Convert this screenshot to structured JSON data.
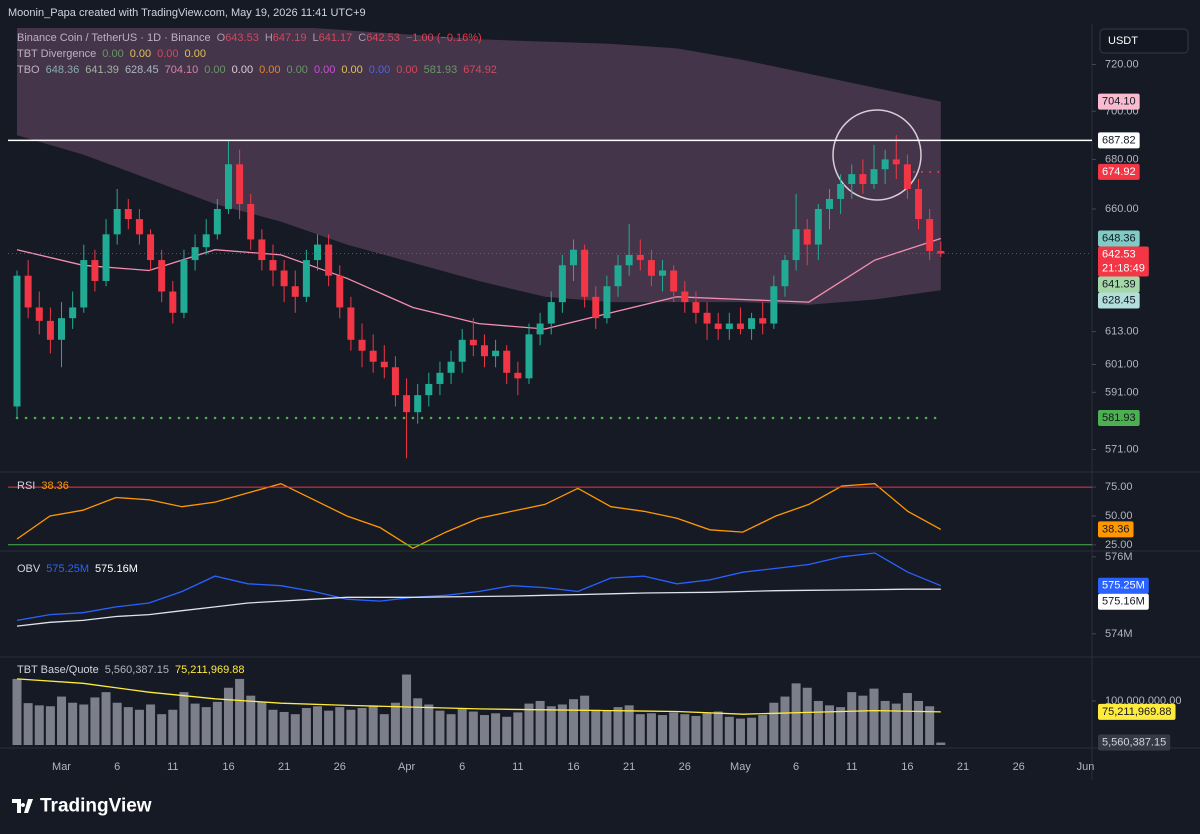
{
  "header": "Moonin_Papa created with TradingView.com, May 19, 2026 11:41 UTC+9",
  "footer_logo": "TradingView",
  "currency": "USDT",
  "legend": {
    "symbol": "Binance Coin / TetherUS · 1D · Binance",
    "value_color": "#f23645",
    "ohlc": [
      {
        "prefix": "O",
        "value": "643.53"
      },
      {
        "prefix": "H",
        "value": "647.19"
      },
      {
        "prefix": "L",
        "value": "641.17"
      },
      {
        "prefix": "C",
        "value": "642.53"
      }
    ],
    "change": "−1.00 (−0.16%)",
    "indicators": [
      {
        "name": "TBT Divergence",
        "values": [
          {
            "text": "0.00",
            "color": "#4caf50"
          },
          {
            "text": "0.00",
            "color": "#ffeb3b"
          },
          {
            "text": "0.00",
            "color": "#f23645"
          },
          {
            "text": "0.00",
            "color": "#ffeb3b"
          }
        ]
      },
      {
        "name": "TBO",
        "values": [
          {
            "text": "648.36",
            "color": "#80cbc4"
          },
          {
            "text": "641.39",
            "color": "#a5d6a7"
          },
          {
            "text": "628.45",
            "color": "#b2dfdb"
          },
          {
            "text": "704.10",
            "color": "#f48fb1"
          },
          {
            "text": "0.00",
            "color": "#4caf50"
          },
          {
            "text": "0.00",
            "color": "#ffffff"
          },
          {
            "text": "0.00",
            "color": "#ff9800"
          },
          {
            "text": "0.00",
            "color": "#4caf50"
          },
          {
            "text": "0.00",
            "color": "#e040fb"
          },
          {
            "text": "0.00",
            "color": "#ffeb3b"
          },
          {
            "text": "0.00",
            "color": "#2962ff"
          },
          {
            "text": "0.00",
            "color": "#f23645"
          },
          {
            "text": "581.93",
            "color": "#4caf50"
          },
          {
            "text": "674.92",
            "color": "#f23645"
          }
        ]
      }
    ]
  },
  "time_axis": {
    "labels": [
      "Mar",
      "6",
      "11",
      "16",
      "21",
      "26",
      "Apr",
      "6",
      "11",
      "16",
      "21",
      "26",
      "May",
      "6",
      "11",
      "16",
      "21",
      "26",
      "Jun"
    ]
  },
  "chart_data": [
    {
      "type": "candlestick",
      "log": true,
      "ylim": [
        564,
        736
      ],
      "up_color": "#22ab94",
      "down_color": "#f23645",
      "yticks": [
        {
          "value": 720,
          "label": "720.00"
        },
        {
          "value": 700,
          "label": "700.00"
        },
        {
          "value": 680,
          "label": "680.00"
        },
        {
          "value": 660,
          "label": "660.00"
        },
        {
          "value": 613,
          "label": "613.00"
        },
        {
          "value": 601,
          "label": "601.00"
        },
        {
          "value": 591,
          "label": "591.00"
        },
        {
          "value": 571,
          "label": "571.00"
        }
      ],
      "open": [
        586,
        634,
        622,
        617,
        610,
        618,
        622,
        640,
        632,
        650,
        660,
        656,
        650,
        640,
        628,
        620,
        640,
        645,
        650,
        660,
        678,
        662,
        648,
        640,
        636,
        630,
        626,
        640,
        646,
        634,
        622,
        610,
        606,
        602,
        600,
        590,
        584,
        590,
        594,
        598,
        602,
        610,
        608,
        604,
        606,
        598,
        596,
        612,
        616,
        624,
        638,
        644,
        626,
        618,
        630,
        638,
        642,
        640,
        634,
        636,
        628,
        624,
        620,
        616,
        614,
        616,
        614,
        618,
        616,
        630,
        640,
        652,
        646,
        660,
        664,
        670,
        674,
        670,
        676,
        680,
        678,
        668,
        656,
        643.53
      ],
      "high": [
        636,
        640,
        628,
        622,
        624,
        628,
        646,
        644,
        656,
        668,
        664,
        660,
        652,
        644,
        632,
        644,
        650,
        656,
        664,
        688,
        684,
        666,
        652,
        646,
        640,
        636,
        644,
        650,
        650,
        638,
        626,
        616,
        612,
        608,
        604,
        596,
        594,
        598,
        602,
        606,
        614,
        618,
        612,
        610,
        608,
        602,
        616,
        620,
        628,
        642,
        648,
        646,
        630,
        634,
        642,
        654,
        648,
        644,
        640,
        638,
        632,
        628,
        624,
        620,
        620,
        622,
        620,
        624,
        634,
        642,
        666,
        656,
        662,
        668,
        674,
        678,
        680,
        686,
        684,
        690,
        682,
        672,
        660,
        647.19
      ],
      "low": [
        582,
        618,
        612,
        605,
        600,
        614,
        620,
        628,
        630,
        646,
        652,
        646,
        636,
        624,
        616,
        618,
        636,
        642,
        648,
        658,
        656,
        644,
        636,
        630,
        624,
        620,
        624,
        636,
        630,
        618,
        606,
        600,
        598,
        596,
        586,
        568,
        580,
        586,
        590,
        594,
        598,
        604,
        600,
        600,
        594,
        590,
        594,
        608,
        612,
        620,
        632,
        622,
        614,
        616,
        626,
        634,
        636,
        630,
        628,
        624,
        620,
        616,
        610,
        610,
        610,
        612,
        610,
        612,
        614,
        626,
        636,
        638,
        640,
        652,
        658,
        664,
        666,
        668,
        670,
        672,
        664,
        652,
        640,
        641.17
      ],
      "close": [
        634,
        622,
        617,
        610,
        618,
        622,
        640,
        632,
        650,
        660,
        656,
        650,
        640,
        628,
        620,
        640,
        645,
        650,
        660,
        678,
        662,
        648,
        640,
        636,
        630,
        626,
        640,
        646,
        634,
        622,
        610,
        606,
        602,
        600,
        590,
        584,
        590,
        594,
        598,
        602,
        610,
        608,
        604,
        606,
        598,
        596,
        612,
        616,
        624,
        638,
        644,
        626,
        618,
        630,
        638,
        642,
        640,
        634,
        636,
        628,
        624,
        620,
        616,
        614,
        616,
        614,
        618,
        616,
        630,
        640,
        652,
        646,
        660,
        664,
        670,
        674,
        670,
        676,
        680,
        678,
        668,
        656,
        643.53,
        642.53
      ],
      "cloud": {
        "color": "#9c6b8f",
        "upper": [
          760,
          752,
          745,
          740,
          737,
          735,
          733,
          731,
          730,
          729,
          727,
          722,
          716,
          710,
          704.1
        ],
        "lower": [
          690,
          682,
          672,
          662,
          655,
          646,
          639,
          632,
          626,
          624,
          624,
          624,
          623,
          625,
          628.45
        ]
      },
      "lines": [
        {
          "color": "#f48fb1",
          "values": [
            644,
            638,
            636,
            644,
            642,
            633,
            622,
            616,
            614,
            620,
            626,
            625,
            624,
            640,
            648.36
          ]
        }
      ],
      "axis_labels": [
        {
          "value": 704.1,
          "label": "704.10",
          "color": "#f8bbd0",
          "text_color": "#131722"
        },
        {
          "value": 687.82,
          "label": "687.82",
          "color": "#ffffff",
          "text_color": "#131722",
          "line": "solid"
        },
        {
          "value": 674.92,
          "label": "674.92",
          "color": "#f23645",
          "text_color": "#ffffff",
          "line": "dotted-short"
        },
        {
          "value": 648.36,
          "label": "648.36",
          "color": "#80cbc4",
          "text_color": "#131722"
        },
        {
          "value": 642.53,
          "label": "642.53",
          "sublabel": "21:18:49",
          "color": "#f23645",
          "text_color": "#ffffff",
          "line": "price"
        },
        {
          "value": 641.39,
          "label": "641.39",
          "color": "#a5d6a7",
          "text_color": "#131722"
        },
        {
          "value": 628.45,
          "label": "628.45",
          "color": "#b2dfdb",
          "text_color": "#131722"
        },
        {
          "value": 581.93,
          "label": "581.93",
          "color": "#4caf50",
          "text_color": "#131722",
          "line": "dotted"
        }
      ]
    },
    {
      "type": "line",
      "name": "RSI",
      "ylim": [
        20.5,
        85.5
      ],
      "legend_values": [
        {
          "text": "38.36",
          "color": "#ff9800"
        }
      ],
      "yticks": [
        {
          "value": 75,
          "label": "75.00",
          "line": "#f23645"
        },
        {
          "value": 50,
          "label": "50.00"
        },
        {
          "value": 25,
          "label": "25.00",
          "line": "#4caf50"
        }
      ],
      "series": [
        {
          "color": "#ff9800",
          "values": [
            30,
            50,
            55,
            66,
            64,
            58,
            62,
            70,
            78,
            64,
            50,
            40,
            22,
            36,
            48,
            54,
            60,
            74,
            58,
            54,
            48,
            38,
            36,
            50,
            60,
            76,
            78,
            54,
            38.36
          ]
        }
      ],
      "axis_labels": [
        {
          "value": 38.36,
          "label": "38.36",
          "color": "#ff9800",
          "text_color": "#131722"
        }
      ]
    },
    {
      "type": "line",
      "name": "OBV",
      "ylim": [
        573450000,
        576100000
      ],
      "legend_values": [
        {
          "text": "575.25M",
          "color": "#2962ff"
        },
        {
          "text": "575.16M",
          "color": "#ffffff"
        }
      ],
      "yticks": [
        {
          "value": 576000000,
          "label": "576M"
        },
        {
          "value": 574000000,
          "label": "574M"
        }
      ],
      "series": [
        {
          "color": "#2962ff",
          "values": [
            574350000,
            574500000,
            574550000,
            574700000,
            574800000,
            575100000,
            575500000,
            575300000,
            575250000,
            575100000,
            574900000,
            574850000,
            574950000,
            575000000,
            575100000,
            575250000,
            575200000,
            575100000,
            575450000,
            575500000,
            575300000,
            575400000,
            575600000,
            575700000,
            575800000,
            576000000,
            576100000,
            575600000,
            575250000
          ]
        },
        {
          "color": "#e0e3eb",
          "values": [
            574200000,
            574300000,
            574350000,
            574450000,
            574500000,
            574600000,
            574700000,
            574800000,
            574850000,
            574900000,
            574950000,
            574950000,
            574950000,
            574960000,
            574970000,
            574980000,
            575000000,
            575020000,
            575040000,
            575060000,
            575070000,
            575080000,
            575100000,
            575120000,
            575130000,
            575140000,
            575150000,
            575160000,
            575160000
          ]
        }
      ],
      "axis_labels": [
        {
          "value": 575250000,
          "label": "575.25M",
          "color": "#2962ff",
          "text_color": "#ffffff"
        },
        {
          "value": 575160000,
          "label": "575.16M",
          "color": "#ffffff",
          "text_color": "#131722"
        }
      ]
    },
    {
      "type": "bar",
      "name": "TBT Base/Quote",
      "ylim": [
        0,
        193000000
      ],
      "color": "#7c7f8a",
      "legend_values": [
        {
          "text": "5,560,387.15",
          "color": "#b2b5be"
        },
        {
          "text": "75,211,969.88",
          "color": "#ffeb3b"
        }
      ],
      "yticks": [
        {
          "value": 100000000,
          "label": "100,000,000.00"
        }
      ],
      "values": [
        150000000.0,
        95000000.0,
        90000000.0,
        88000000.0,
        110000000.0,
        96000000.0,
        92000000.0,
        108000000.0,
        120000000.0,
        96000000.0,
        86000000.0,
        80000000.0,
        92000000.0,
        70000000.0,
        80000000.0,
        120000000.0,
        94000000.0,
        86000000.0,
        98000000.0,
        130000000.0,
        150000000.0,
        112000000.0,
        98000000.0,
        80000000.0,
        75000000.0,
        70000000.0,
        84000000.0,
        88000000.0,
        78000000.0,
        86000000.0,
        80000000.0,
        84000000.0,
        90000000.0,
        70000000.0,
        96000000.0,
        160000000.0,
        106000000.0,
        92000000.0,
        78000000.0,
        70000000.0,
        82000000.0,
        76000000.0,
        68000000.0,
        72000000.0,
        64000000.0,
        74000000.0,
        94000000.0,
        100000000.0,
        88000000.0,
        92000000.0,
        104000000.0,
        112000000.0,
        80000000.0,
        78000000.0,
        86000000.0,
        90000000.0,
        70000000.0,
        72000000.0,
        68000000.0,
        74000000.0,
        70000000.0,
        66000000.0,
        72000000.0,
        76000000.0,
        64000000.0,
        60000000.0,
        62000000.0,
        68000000.0,
        96000000.0,
        110000000.0,
        140000000.0,
        130000000.0,
        100000000.0,
        90000000.0,
        86000000.0,
        120000000.0,
        112000000.0,
        128000000.0,
        100000000.0,
        94000000.0,
        118000000.0,
        100000000.0,
        88000000.0,
        5560387.15
      ],
      "ma": {
        "color": "#ffeb3b",
        "values": [
          150000000.0,
          140000000.0,
          120000000.0,
          105000000.0,
          95000000.0,
          90000000.0,
          86000000.0,
          82000000.0,
          80000000.0,
          78000000.0,
          76000000.0,
          70000000.0,
          74000000.0,
          78000000.0,
          75211969.88
        ]
      },
      "axis_labels": [
        {
          "value": 75211969.88,
          "label": "75,211,969.88",
          "color": "#ffeb3b",
          "text_color": "#131722"
        },
        {
          "value": 5560387.15,
          "label": "5,560,387.15",
          "color": "#363a45",
          "text_color": "#d1d4dc"
        }
      ]
    }
  ]
}
